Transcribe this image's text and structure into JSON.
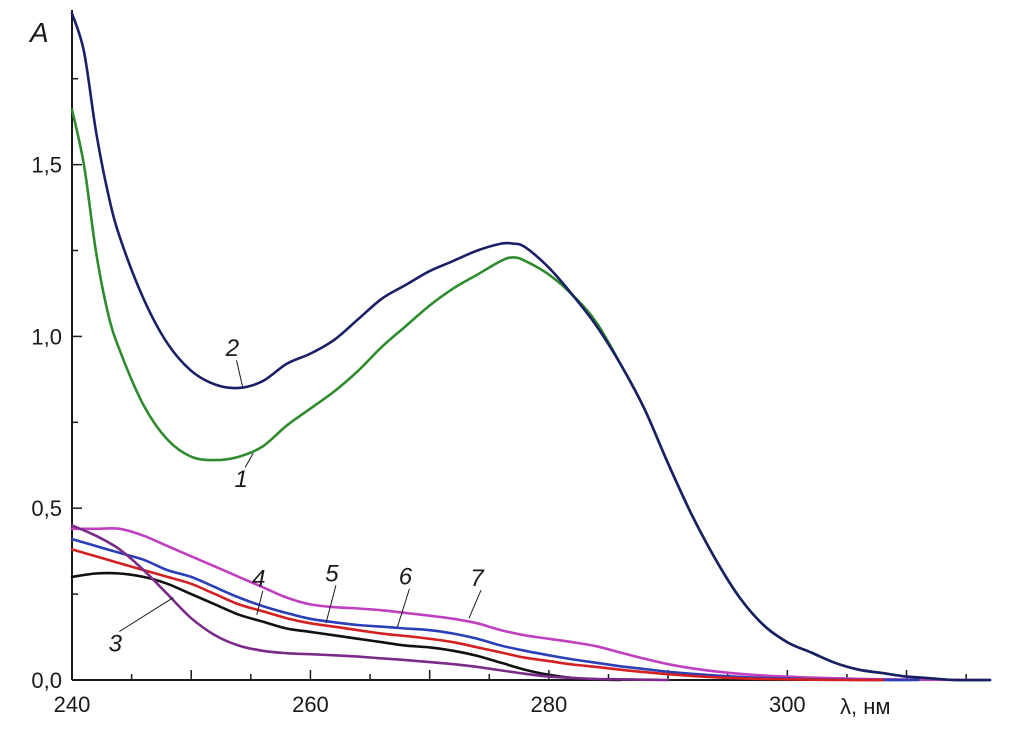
{
  "chart_data": {
    "type": "line",
    "ylabel": "A",
    "xlabel": "λ, нм",
    "xlim": [
      240,
      317
    ],
    "ylim": [
      0,
      1.95
    ],
    "grid": false,
    "legend": "none",
    "x_ticks": [
      {
        "value": 240,
        "label": "240"
      },
      {
        "value": 260,
        "label": "260"
      },
      {
        "value": 280,
        "label": "280"
      },
      {
        "value": 300,
        "label": "300"
      }
    ],
    "y_ticks": [
      {
        "value": 0.0,
        "label": "0,0"
      },
      {
        "value": 0.5,
        "label": "0,5"
      },
      {
        "value": 1.0,
        "label": "1,0"
      },
      {
        "value": 1.5,
        "label": "1,5"
      }
    ],
    "series": [
      {
        "label": "1",
        "color": "#2e8b2e",
        "x": [
          240,
          241,
          242,
          243,
          244,
          246,
          248,
          250,
          252,
          254,
          256,
          258,
          260,
          262,
          264,
          266,
          268,
          270,
          272,
          274,
          276,
          277,
          278,
          280,
          282,
          284,
          286,
          288,
          290,
          292,
          294,
          296,
          298,
          300,
          302,
          304,
          306,
          308,
          310,
          312,
          314,
          317
        ],
        "y": [
          1.66,
          1.5,
          1.25,
          1.07,
          0.96,
          0.8,
          0.7,
          0.65,
          0.64,
          0.65,
          0.68,
          0.74,
          0.79,
          0.84,
          0.9,
          0.97,
          1.03,
          1.09,
          1.14,
          1.18,
          1.22,
          1.23,
          1.22,
          1.18,
          1.12,
          1.04,
          0.92,
          0.79,
          0.63,
          0.48,
          0.35,
          0.24,
          0.16,
          0.11,
          0.08,
          0.05,
          0.03,
          0.02,
          0.01,
          0.005,
          0.0,
          0.0
        ]
      },
      {
        "label": "2",
        "color": "#1a1f66",
        "x": [
          240,
          241,
          242,
          243,
          244,
          246,
          248,
          250,
          252,
          254,
          256,
          258,
          260,
          262,
          264,
          266,
          268,
          270,
          272,
          274,
          276,
          277,
          278,
          280,
          282,
          284,
          286,
          288,
          290,
          292,
          294,
          296,
          298,
          300,
          302,
          304,
          306,
          308,
          310,
          312,
          314,
          317
        ],
        "y": [
          1.94,
          1.83,
          1.6,
          1.42,
          1.29,
          1.11,
          0.98,
          0.9,
          0.86,
          0.85,
          0.87,
          0.92,
          0.95,
          0.99,
          1.05,
          1.11,
          1.15,
          1.19,
          1.22,
          1.25,
          1.27,
          1.27,
          1.26,
          1.2,
          1.12,
          1.03,
          0.92,
          0.79,
          0.63,
          0.48,
          0.35,
          0.24,
          0.16,
          0.11,
          0.08,
          0.05,
          0.03,
          0.02,
          0.01,
          0.005,
          0.0,
          0.0
        ]
      },
      {
        "label": "3",
        "color": "#7b2a8a",
        "x": [
          240,
          242,
          244,
          246,
          248,
          250,
          252,
          254,
          256,
          258,
          260,
          262,
          264,
          266,
          268,
          270,
          272,
          274,
          276,
          278,
          280,
          282,
          284,
          286,
          288,
          290
        ],
        "y": [
          0.45,
          0.42,
          0.38,
          0.32,
          0.25,
          0.18,
          0.13,
          0.1,
          0.085,
          0.078,
          0.075,
          0.072,
          0.068,
          0.063,
          0.058,
          0.052,
          0.046,
          0.038,
          0.028,
          0.018,
          0.01,
          0.006,
          0.003,
          0.002,
          0.001,
          0.0
        ]
      },
      {
        "label": "4",
        "color": "#111111",
        "x": [
          240,
          242,
          244,
          246,
          248,
          250,
          252,
          254,
          256,
          258,
          260,
          262,
          264,
          266,
          268,
          270,
          272,
          274,
          276,
          278,
          280,
          282,
          284,
          286
        ],
        "y": [
          0.3,
          0.31,
          0.31,
          0.3,
          0.28,
          0.25,
          0.22,
          0.19,
          0.17,
          0.15,
          0.14,
          0.13,
          0.12,
          0.11,
          0.1,
          0.095,
          0.085,
          0.07,
          0.05,
          0.03,
          0.015,
          0.006,
          0.002,
          0.0
        ]
      },
      {
        "label": "5",
        "color": "#d42020",
        "x": [
          240,
          242,
          244,
          246,
          248,
          250,
          252,
          254,
          256,
          258,
          260,
          262,
          264,
          266,
          268,
          270,
          272,
          274,
          276,
          278,
          280,
          282,
          284,
          286,
          288,
          290,
          292,
          294,
          296,
          298,
          300,
          302,
          305,
          308
        ],
        "y": [
          0.38,
          0.36,
          0.34,
          0.32,
          0.3,
          0.28,
          0.25,
          0.22,
          0.2,
          0.18,
          0.165,
          0.155,
          0.145,
          0.135,
          0.128,
          0.12,
          0.11,
          0.095,
          0.08,
          0.065,
          0.055,
          0.045,
          0.038,
          0.03,
          0.023,
          0.017,
          0.012,
          0.008,
          0.005,
          0.003,
          0.002,
          0.001,
          0.0,
          0.0
        ]
      },
      {
        "label": "6",
        "color": "#2a3fb8",
        "x": [
          240,
          242,
          244,
          246,
          248,
          250,
          252,
          254,
          256,
          258,
          260,
          262,
          264,
          266,
          268,
          270,
          272,
          274,
          276,
          278,
          280,
          282,
          284,
          286,
          288,
          290,
          292,
          294,
          296,
          298,
          300,
          302,
          305,
          308,
          311
        ],
        "y": [
          0.41,
          0.39,
          0.37,
          0.35,
          0.32,
          0.3,
          0.27,
          0.24,
          0.215,
          0.195,
          0.178,
          0.168,
          0.16,
          0.155,
          0.15,
          0.145,
          0.135,
          0.12,
          0.1,
          0.085,
          0.072,
          0.06,
          0.05,
          0.04,
          0.032,
          0.024,
          0.018,
          0.013,
          0.009,
          0.006,
          0.004,
          0.002,
          0.001,
          0.0,
          0.0
        ]
      },
      {
        "label": "7",
        "color": "#c040c0",
        "x": [
          240,
          242,
          244,
          246,
          248,
          250,
          252,
          254,
          256,
          258,
          260,
          262,
          264,
          266,
          268,
          270,
          272,
          274,
          276,
          278,
          280,
          282,
          284,
          286,
          288,
          290,
          292,
          294,
          296,
          298,
          300,
          302,
          305,
          308,
          312,
          317
        ],
        "y": [
          0.44,
          0.44,
          0.44,
          0.42,
          0.39,
          0.36,
          0.33,
          0.3,
          0.27,
          0.24,
          0.22,
          0.212,
          0.208,
          0.203,
          0.195,
          0.187,
          0.178,
          0.165,
          0.145,
          0.13,
          0.12,
          0.11,
          0.098,
          0.08,
          0.062,
          0.046,
          0.034,
          0.025,
          0.018,
          0.013,
          0.01,
          0.007,
          0.004,
          0.002,
          0.001,
          0.0
        ]
      }
    ],
    "annotations": [
      {
        "text": "1",
        "series": "1",
        "x": 255.2,
        "y": 0.66
      },
      {
        "text": "2",
        "series": "2",
        "x": 254.3,
        "y": 0.855
      },
      {
        "text": "3",
        "series": "3",
        "x": 248.5,
        "y": 0.24
      },
      {
        "text": "4",
        "series": "4",
        "x": 255.5,
        "y": 0.19
      },
      {
        "text": "5",
        "series": "5",
        "x": 261.3,
        "y": 0.165
      },
      {
        "text": "6",
        "series": "6",
        "x": 267.3,
        "y": 0.155
      },
      {
        "text": "7",
        "series": "7",
        "x": 273.3,
        "y": 0.18
      }
    ]
  }
}
